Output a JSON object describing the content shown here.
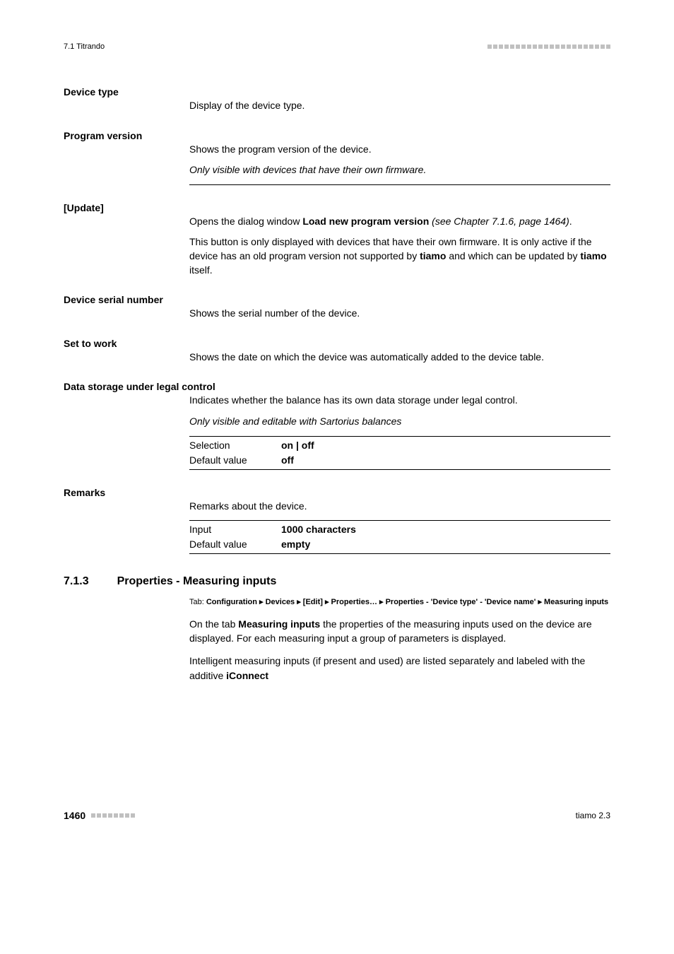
{
  "header": {
    "left": "7.1 Titrando",
    "dot_count": 22,
    "dot_color": "#c0c0c0"
  },
  "fields": {
    "device_type": {
      "label": "Device type",
      "desc": "Display of the device type."
    },
    "program_version": {
      "label": "Program version",
      "desc": "Shows the program version of the device.",
      "note": "Only visible with devices that have their own firmware."
    },
    "update": {
      "label": "[Update]",
      "line1_a": "Opens the dialog window ",
      "line1_b": "Load new program version",
      "line1_c": " (see Chapter 7.1.6, page 1464)",
      "line1_d": ".",
      "line2_a": "This button is only displayed with devices that have their own firmware. It is only active if the device has an old program version not supported by ",
      "line2_b": "tiamo",
      "line2_c": " and which can be updated by ",
      "line2_d": "tiamo",
      "line2_e": " itself."
    },
    "device_serial": {
      "label": "Device serial number",
      "desc": "Shows the serial number of the device."
    },
    "set_to_work": {
      "label": "Set to work",
      "desc": "Shows the date on which the device was automatically added to the device table."
    },
    "data_storage": {
      "label": "Data storage under legal control",
      "desc": "Indicates whether the balance has its own data storage under legal control.",
      "note": "Only visible and editable with Sartorius balances",
      "selection_label": "Selection",
      "selection_value": "on | off",
      "default_label": "Default value",
      "default_value": "off"
    },
    "remarks": {
      "label": "Remarks",
      "desc": "Remarks about the device.",
      "input_label": "Input",
      "input_value": "1000 characters",
      "default_label": "Default value",
      "default_value": "empty"
    }
  },
  "section": {
    "number": "7.1.3",
    "title": "Properties - Measuring inputs",
    "tab_prefix": "Tab: ",
    "tab_path": "Configuration ▸ Devices ▸ [Edit] ▸ Properties… ▸ Properties - 'Device type' - 'Device name' ▸ Measuring inputs",
    "para1_a": "On the tab ",
    "para1_b": "Measuring inputs",
    "para1_c": " the properties of the measuring inputs used on the device are displayed. For each measuring input a group of parameters is displayed.",
    "para2_a": "Intelligent measuring inputs (if present and used) are listed separately and labeled with the additive ",
    "para2_b": "iConnect"
  },
  "footer": {
    "page": "1460",
    "dot_count": 8,
    "dot_color": "#c0c0c0",
    "right": "tiamo 2.3"
  }
}
